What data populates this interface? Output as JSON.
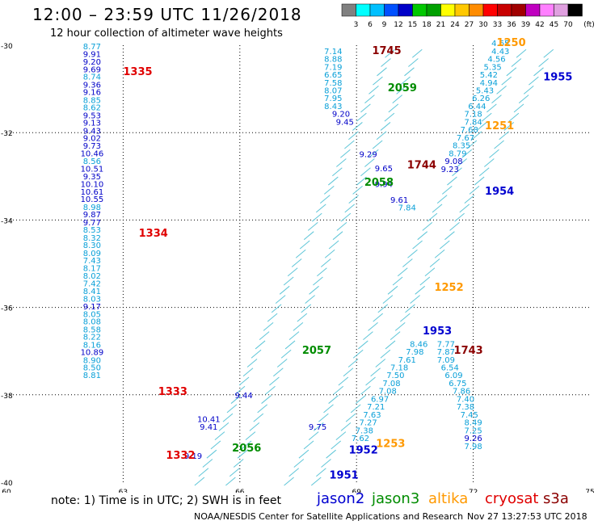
{
  "header": {
    "title": "12:00 – 23:59 UTC 11/26/2018",
    "subtitle": "12 hour collection of altimeter wave heights"
  },
  "colorbar": {
    "colors": [
      "#808080",
      "#00ffff",
      "#00c0ff",
      "#0050ff",
      "#0000c8",
      "#00c800",
      "#00a000",
      "#ffff00",
      "#ffc800",
      "#ff8c00",
      "#ff0000",
      "#c80000",
      "#a00000",
      "#c000c0",
      "#ff80ff",
      "#e0a0e0",
      "#000000"
    ],
    "labels": [
      "3",
      "6",
      "9",
      "12",
      "15",
      "18",
      "21",
      "24",
      "27",
      "30",
      "33",
      "36",
      "39",
      "42",
      "45",
      "70"
    ],
    "unit": "(ft)"
  },
  "chart_data": {
    "type": "scatter",
    "title": "",
    "xlabel": "",
    "ylabel": "",
    "xlim": [
      60,
      75
    ],
    "ylim": [
      -40,
      -30
    ],
    "x_ticks": [
      "60",
      "63",
      "66",
      "69",
      "72",
      "75"
    ],
    "y_ticks": [
      "-30",
      "-32",
      "-34",
      "-36",
      "-38",
      "-40"
    ],
    "grid": true,
    "value_labels": [
      {
        "text": "8.77",
        "x": 62.2,
        "y": -30.09
      },
      {
        "text": "9.91",
        "x": 62.2,
        "y": -30.27
      },
      {
        "text": "9.20",
        "x": 62.2,
        "y": -30.44
      },
      {
        "text": "9.69",
        "x": 62.2,
        "y": -30.62
      },
      {
        "text": "8.74",
        "x": 62.2,
        "y": -30.79
      },
      {
        "text": "9.36",
        "x": 62.2,
        "y": -30.97
      },
      {
        "text": "9.16",
        "x": 62.2,
        "y": -31.14
      },
      {
        "text": "8.85",
        "x": 62.2,
        "y": -31.32
      },
      {
        "text": "8.62",
        "x": 62.2,
        "y": -31.49
      },
      {
        "text": "9.53",
        "x": 62.2,
        "y": -31.67
      },
      {
        "text": "9.13",
        "x": 62.2,
        "y": -31.84
      },
      {
        "text": "9.43",
        "x": 62.2,
        "y": -32.02
      },
      {
        "text": "9.02",
        "x": 62.2,
        "y": -32.19
      },
      {
        "text": "9.73",
        "x": 62.2,
        "y": -32.37
      },
      {
        "text": "10.46",
        "x": 62.2,
        "y": -32.54
      },
      {
        "text": "8.56",
        "x": 62.2,
        "y": -32.72
      },
      {
        "text": "10.51",
        "x": 62.2,
        "y": -32.89
      },
      {
        "text": "9.35",
        "x": 62.2,
        "y": -33.07
      },
      {
        "text": "10.10",
        "x": 62.2,
        "y": -33.24
      },
      {
        "text": "10.61",
        "x": 62.2,
        "y": -33.42
      },
      {
        "text": "10.55",
        "x": 62.2,
        "y": -33.59
      },
      {
        "text": "8.98",
        "x": 62.2,
        "y": -33.77
      },
      {
        "text": "9.87",
        "x": 62.2,
        "y": -33.94
      },
      {
        "text": "9.77",
        "x": 62.2,
        "y": -34.12
      },
      {
        "text": "8.53",
        "x": 62.2,
        "y": -34.29
      },
      {
        "text": "8.32",
        "x": 62.2,
        "y": -34.47
      },
      {
        "text": "8.30",
        "x": 62.2,
        "y": -34.64
      },
      {
        "text": "8.09",
        "x": 62.2,
        "y": -34.82
      },
      {
        "text": "7.43",
        "x": 62.2,
        "y": -34.99
      },
      {
        "text": "8.17",
        "x": 62.2,
        "y": -35.17
      },
      {
        "text": "8.02",
        "x": 62.2,
        "y": -35.34
      },
      {
        "text": "7.42",
        "x": 62.2,
        "y": -35.52
      },
      {
        "text": "8.41",
        "x": 62.2,
        "y": -35.69
      },
      {
        "text": "8.03",
        "x": 62.2,
        "y": -35.87
      },
      {
        "text": "9.17",
        "x": 62.2,
        "y": -36.04
      },
      {
        "text": "8.05",
        "x": 62.2,
        "y": -36.22
      },
      {
        "text": "8.08",
        "x": 62.2,
        "y": -36.39
      },
      {
        "text": "8.58",
        "x": 62.2,
        "y": -36.57
      },
      {
        "text": "8.22",
        "x": 62.2,
        "y": -36.74
      },
      {
        "text": "8.16",
        "x": 62.2,
        "y": -36.92
      },
      {
        "text": "10.89",
        "x": 62.2,
        "y": -37.09
      },
      {
        "text": "8.90",
        "x": 62.2,
        "y": -37.27
      },
      {
        "text": "8.50",
        "x": 62.2,
        "y": -37.44
      },
      {
        "text": "8.81",
        "x": 62.2,
        "y": -37.62
      },
      {
        "text": "7.14",
        "x": 68.4,
        "y": -30.2
      },
      {
        "text": "8.88",
        "x": 68.4,
        "y": -30.38
      },
      {
        "text": "7.19",
        "x": 68.4,
        "y": -30.56
      },
      {
        "text": "6.65",
        "x": 68.4,
        "y": -30.74
      },
      {
        "text": "7.58",
        "x": 68.4,
        "y": -30.92
      },
      {
        "text": "8.07",
        "x": 68.4,
        "y": -31.1
      },
      {
        "text": "7.95",
        "x": 68.4,
        "y": -31.28
      },
      {
        "text": "8.43",
        "x": 68.4,
        "y": -31.46
      },
      {
        "text": "9.20",
        "x": 68.6,
        "y": -31.64
      },
      {
        "text": "9.45",
        "x": 68.7,
        "y": -31.82
      },
      {
        "text": "9.29",
        "x": 69.3,
        "y": -32.56
      },
      {
        "text": "9.65",
        "x": 69.7,
        "y": -32.88
      },
      {
        "text": "9.94",
        "x": 69.7,
        "y": -33.24
      },
      {
        "text": "9.61",
        "x": 70.1,
        "y": -33.6
      },
      {
        "text": "7.84",
        "x": 70.3,
        "y": -33.78
      },
      {
        "text": "8.46",
        "x": 70.6,
        "y": -36.9
      },
      {
        "text": "7.98",
        "x": 70.5,
        "y": -37.08
      },
      {
        "text": "7.61",
        "x": 70.3,
        "y": -37.26
      },
      {
        "text": "7.18",
        "x": 70.1,
        "y": -37.44
      },
      {
        "text": "7.50",
        "x": 70.0,
        "y": -37.62
      },
      {
        "text": "7.08",
        "x": 69.9,
        "y": -37.8
      },
      {
        "text": "7.08",
        "x": 69.8,
        "y": -37.98
      },
      {
        "text": "6.97",
        "x": 69.6,
        "y": -38.16
      },
      {
        "text": "7.21",
        "x": 69.5,
        "y": -38.34
      },
      {
        "text": "7.63",
        "x": 69.4,
        "y": -38.52
      },
      {
        "text": "7.27",
        "x": 69.3,
        "y": -38.7
      },
      {
        "text": "7.38",
        "x": 69.2,
        "y": -38.88
      },
      {
        "text": "7.62",
        "x": 69.1,
        "y": -39.06
      },
      {
        "text": "4.65",
        "x": 72.7,
        "y": -30.02
      },
      {
        "text": "4.43",
        "x": 72.7,
        "y": -30.2
      },
      {
        "text": "4.56",
        "x": 72.6,
        "y": -30.38
      },
      {
        "text": "5.35",
        "x": 72.5,
        "y": -30.56
      },
      {
        "text": "5.42",
        "x": 72.4,
        "y": -30.74
      },
      {
        "text": "4.94",
        "x": 72.4,
        "y": -30.92
      },
      {
        "text": "5.43",
        "x": 72.3,
        "y": -31.1
      },
      {
        "text": "6.26",
        "x": 72.2,
        "y": -31.28
      },
      {
        "text": "6.44",
        "x": 72.1,
        "y": -31.46
      },
      {
        "text": "7.18",
        "x": 72.0,
        "y": -31.64
      },
      {
        "text": "7.84",
        "x": 72.0,
        "y": -31.82
      },
      {
        "text": "7.68",
        "x": 71.9,
        "y": -32.0
      },
      {
        "text": "7.67",
        "x": 71.8,
        "y": -32.18
      },
      {
        "text": "8.35",
        "x": 71.7,
        "y": -32.36
      },
      {
        "text": "8.79",
        "x": 71.6,
        "y": -32.54
      },
      {
        "text": "9.08",
        "x": 71.5,
        "y": -32.72
      },
      {
        "text": "9.23",
        "x": 71.4,
        "y": -32.9
      },
      {
        "text": "7.77",
        "x": 71.3,
        "y": -36.9
      },
      {
        "text": "7.87",
        "x": 71.3,
        "y": -37.08
      },
      {
        "text": "7.09",
        "x": 71.3,
        "y": -37.26
      },
      {
        "text": "6.54",
        "x": 71.4,
        "y": -37.44
      },
      {
        "text": "6.09",
        "x": 71.5,
        "y": -37.62
      },
      {
        "text": "6.75",
        "x": 71.6,
        "y": -37.8
      },
      {
        "text": "7.86",
        "x": 71.7,
        "y": -37.98
      },
      {
        "text": "7.40",
        "x": 71.8,
        "y": -38.16
      },
      {
        "text": "7.38",
        "x": 71.8,
        "y": -38.34
      },
      {
        "text": "7.45",
        "x": 71.9,
        "y": -38.52
      },
      {
        "text": "8.49",
        "x": 72.0,
        "y": -38.7
      },
      {
        "text": "7.25",
        "x": 72.0,
        "y": -38.88
      },
      {
        "text": "9.26",
        "x": 72.0,
        "y": -39.06
      },
      {
        "text": "7.98",
        "x": 72.0,
        "y": -39.24
      },
      {
        "text": "9.44",
        "x": 66.1,
        "y": -38.08
      },
      {
        "text": "10.41",
        "x": 65.2,
        "y": -38.62
      },
      {
        "text": "9.41",
        "x": 65.2,
        "y": -38.8
      },
      {
        "text": "9.19",
        "x": 64.8,
        "y": -39.46
      },
      {
        "text": "9.75",
        "x": 68.0,
        "y": -38.8
      }
    ],
    "time_labels": [
      {
        "text": "1335",
        "mission": "cryosat",
        "x": 63.0,
        "y": -30.68
      },
      {
        "text": "1334",
        "mission": "cryosat",
        "x": 63.4,
        "y": -34.38
      },
      {
        "text": "1333",
        "mission": "cryosat",
        "x": 63.9,
        "y": -38.0
      },
      {
        "text": "1332",
        "mission": "cryosat",
        "x": 64.1,
        "y": -39.46
      },
      {
        "text": "1745",
        "mission": "s3a",
        "x": 69.4,
        "y": -30.2
      },
      {
        "text": "1744",
        "mission": "s3a",
        "x": 70.3,
        "y": -32.82
      },
      {
        "text": "1743",
        "mission": "s3a",
        "x": 71.5,
        "y": -37.06
      },
      {
        "text": "2059",
        "mission": "jason3",
        "x": 69.8,
        "y": -31.05
      },
      {
        "text": "2058",
        "mission": "jason3",
        "x": 69.2,
        "y": -33.22
      },
      {
        "text": "2057",
        "mission": "jason3",
        "x": 67.6,
        "y": -37.06
      },
      {
        "text": "2056",
        "mission": "jason3",
        "x": 65.8,
        "y": -39.3
      },
      {
        "text": "1955",
        "mission": "jason2",
        "x": 73.8,
        "y": -30.8
      },
      {
        "text": "1954",
        "mission": "jason2",
        "x": 72.3,
        "y": -33.42
      },
      {
        "text": "1953",
        "mission": "jason2",
        "x": 70.7,
        "y": -36.62
      },
      {
        "text": "1952",
        "mission": "jason2",
        "x": 68.8,
        "y": -39.34
      },
      {
        "text": "1951",
        "mission": "jason2",
        "x": 68.3,
        "y": -39.92
      },
      {
        "text": "1250",
        "mission": "altika",
        "x": 72.6,
        "y": -30.02
      },
      {
        "text": "1251",
        "mission": "altika",
        "x": 72.3,
        "y": -31.92
      },
      {
        "text": "1252",
        "mission": "altika",
        "x": 71.0,
        "y": -35.62
      },
      {
        "text": "1253",
        "mission": "altika",
        "x": 69.5,
        "y": -39.2
      }
    ],
    "series": [
      {
        "name": "jason2",
        "color": "#0000d0"
      },
      {
        "name": "jason3",
        "color": "#008c00"
      },
      {
        "name": "altika",
        "color": "#ff9900"
      },
      {
        "name": "cryosat",
        "color": "#e00000"
      },
      {
        "name": "s3a",
        "color": "#8b0000"
      }
    ]
  },
  "footer": {
    "note": "note: 1) Time is in UTC; 2) SWH is in feet",
    "credit": "NOAA/NESDIS Center for Satellite Applications and Research",
    "timestamp": "Nov 27 13:27:53 UTC 2018"
  }
}
